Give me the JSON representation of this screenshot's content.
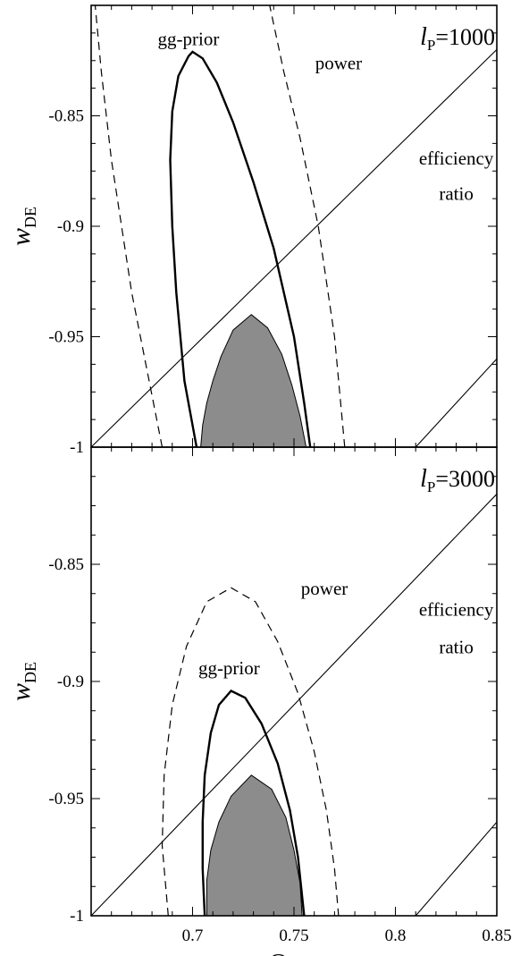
{
  "chart_data": [
    {
      "type": "line",
      "panel_label": "l",
      "panel_label_sub": "P",
      "panel_value": "=1000",
      "xlabel": "",
      "ylabel": "w",
      "ylabel_sub": "DE",
      "xlim": [
        0.65,
        0.85
      ],
      "ylim": [
        -1,
        -0.8
      ],
      "y_ticks": [
        -1,
        -0.95,
        -0.9,
        -0.85
      ],
      "y_tick_labels": [
        "-1",
        "-0.95",
        "-0.9",
        "-0.85"
      ],
      "x_ticks": [
        0.7,
        0.75,
        0.8,
        0.85
      ],
      "x_tick_labels": [],
      "series": [
        {
          "kind": "shaded",
          "color": "#8c8c8c",
          "points": [
            [
              0.704,
              -1
            ],
            [
              0.705,
              -0.99
            ],
            [
              0.707,
              -0.98
            ],
            [
              0.71,
              -0.97
            ],
            [
              0.714,
              -0.959
            ],
            [
              0.72,
              -0.947
            ],
            [
              0.729,
              -0.94
            ],
            [
              0.737,
              -0.946
            ],
            [
              0.744,
              -0.958
            ],
            [
              0.749,
              -0.972
            ],
            [
              0.753,
              -0.986
            ],
            [
              0.756,
              -1
            ]
          ]
        },
        {
          "kind": "solid-thick",
          "name": "gg-prior",
          "points": [
            [
              0.702,
              -1
            ],
            [
              0.696,
              -0.97
            ],
            [
              0.692,
              -0.93
            ],
            [
              0.69,
              -0.9
            ],
            [
              0.689,
              -0.87
            ],
            [
              0.69,
              -0.848
            ],
            [
              0.693,
              -0.832
            ],
            [
              0.698,
              -0.823
            ],
            [
              0.7,
              -0.821
            ],
            [
              0.705,
              -0.824
            ],
            [
              0.712,
              -0.835
            ],
            [
              0.72,
              -0.853
            ],
            [
              0.73,
              -0.88
            ],
            [
              0.74,
              -0.91
            ],
            [
              0.75,
              -0.95
            ],
            [
              0.755,
              -0.98
            ],
            [
              0.758,
              -1
            ]
          ]
        },
        {
          "kind": "dashed",
          "name": "power",
          "points": [
            [
              0.685,
              -1
            ],
            [
              0.67,
              -0.93
            ],
            [
              0.66,
              -0.87
            ],
            [
              0.655,
              -0.83
            ],
            [
              0.652,
              -0.8
            ]
          ]
        },
        {
          "kind": "dashed",
          "name": "power",
          "points": [
            [
              0.775,
              -1
            ],
            [
              0.77,
              -0.95
            ],
            [
              0.762,
              -0.9
            ],
            [
              0.753,
              -0.86
            ],
            [
              0.745,
              -0.83
            ],
            [
              0.738,
              -0.8
            ]
          ]
        },
        {
          "kind": "solid-thin",
          "name": "efficiency ratio",
          "points": [
            [
              0.65,
              -1
            ],
            [
              0.85,
              -0.82
            ]
          ]
        },
        {
          "kind": "solid-thin",
          "name": "efficiency ratio",
          "points": [
            [
              0.81,
              -1
            ],
            [
              0.85,
              -0.96
            ]
          ]
        }
      ],
      "annotations": [
        {
          "text": "gg-prior",
          "x": 0.698,
          "y": -0.818
        },
        {
          "text": "power",
          "x": 0.772,
          "y": -0.829
        },
        {
          "text": "efficiency",
          "x": 0.83,
          "y": -0.872
        },
        {
          "text": "ratio",
          "x": 0.83,
          "y": -0.888
        }
      ]
    },
    {
      "type": "line",
      "panel_label": "l",
      "panel_label_sub": "P",
      "panel_value": "=3000",
      "xlabel": "Ω",
      "xlabel_sub": "DE",
      "ylabel": "w",
      "ylabel_sub": "DE",
      "xlim": [
        0.65,
        0.85
      ],
      "ylim": [
        -1,
        -0.8
      ],
      "y_ticks": [
        -1,
        -0.95,
        -0.9,
        -0.85
      ],
      "y_tick_labels": [
        "-1",
        "-0.95",
        "-0.9",
        "-0.85"
      ],
      "x_ticks": [
        0.7,
        0.75,
        0.8,
        0.85
      ],
      "x_tick_labels": [
        "0.7",
        "0.75",
        "0.8",
        "0.85"
      ],
      "series": [
        {
          "kind": "shaded",
          "color": "#8c8c8c",
          "points": [
            [
              0.707,
              -1
            ],
            [
              0.707,
              -0.985
            ],
            [
              0.709,
              -0.972
            ],
            [
              0.713,
              -0.96
            ],
            [
              0.719,
              -0.949
            ],
            [
              0.729,
              -0.94
            ],
            [
              0.739,
              -0.946
            ],
            [
              0.746,
              -0.958
            ],
            [
              0.75,
              -0.972
            ],
            [
              0.753,
              -0.986
            ],
            [
              0.754,
              -1
            ]
          ]
        },
        {
          "kind": "solid-thick",
          "name": "gg-prior",
          "points": [
            [
              0.706,
              -1
            ],
            [
              0.705,
              -0.98
            ],
            [
              0.705,
              -0.96
            ],
            [
              0.706,
              -0.94
            ],
            [
              0.709,
              -0.922
            ],
            [
              0.713,
              -0.91
            ],
            [
              0.719,
              -0.904
            ],
            [
              0.726,
              -0.907
            ],
            [
              0.734,
              -0.918
            ],
            [
              0.742,
              -0.935
            ],
            [
              0.748,
              -0.955
            ],
            [
              0.752,
              -0.975
            ],
            [
              0.755,
              -1
            ]
          ]
        },
        {
          "kind": "dashed",
          "name": "power",
          "points": [
            [
              0.688,
              -1
            ],
            [
              0.685,
              -0.97
            ],
            [
              0.686,
              -0.94
            ],
            [
              0.69,
              -0.91
            ],
            [
              0.697,
              -0.885
            ],
            [
              0.707,
              -0.866
            ],
            [
              0.719,
              -0.86
            ],
            [
              0.731,
              -0.866
            ],
            [
              0.742,
              -0.883
            ],
            [
              0.752,
              -0.905
            ],
            [
              0.76,
              -0.93
            ],
            [
              0.766,
              -0.955
            ],
            [
              0.77,
              -0.98
            ],
            [
              0.772,
              -1
            ]
          ]
        },
        {
          "kind": "solid-thin",
          "name": "efficiency ratio",
          "points": [
            [
              0.65,
              -1
            ],
            [
              0.85,
              -0.82
            ]
          ]
        },
        {
          "kind": "solid-thin",
          "name": "efficiency ratio",
          "points": [
            [
              0.81,
              -1
            ],
            [
              0.85,
              -0.96
            ]
          ]
        }
      ],
      "annotations": [
        {
          "text": "power",
          "x": 0.765,
          "y": -0.863
        },
        {
          "text": "gg-prior",
          "x": 0.718,
          "y": -0.897
        },
        {
          "text": "efficiency",
          "x": 0.83,
          "y": -0.872
        },
        {
          "text": "ratio",
          "x": 0.83,
          "y": -0.888
        }
      ]
    }
  ]
}
